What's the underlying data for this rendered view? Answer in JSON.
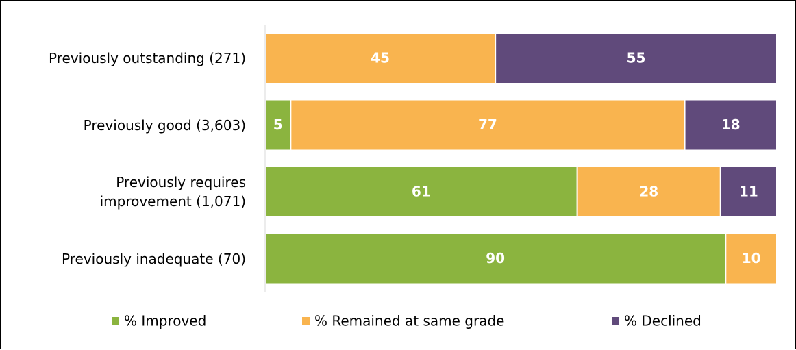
{
  "chart_data": {
    "type": "stacked-bar-horizontal",
    "categories": [
      "Previously outstanding (271)",
      "Previously good (3,603)",
      "Previously requires\nimprovement (1,071)",
      "Previously inadequate (70)"
    ],
    "series": [
      {
        "name": "% Improved",
        "color": "#8bb43f",
        "values": [
          0,
          5,
          61,
          90
        ]
      },
      {
        "name": "% Remained at same grade",
        "color": "#f9b44f",
        "values": [
          45,
          77,
          28,
          10
        ]
      },
      {
        "name": "% Declined",
        "color": "#604a7b",
        "values": [
          55,
          18,
          11,
          0
        ]
      }
    ],
    "xlim": [
      0,
      100
    ],
    "legend": "bottom"
  }
}
